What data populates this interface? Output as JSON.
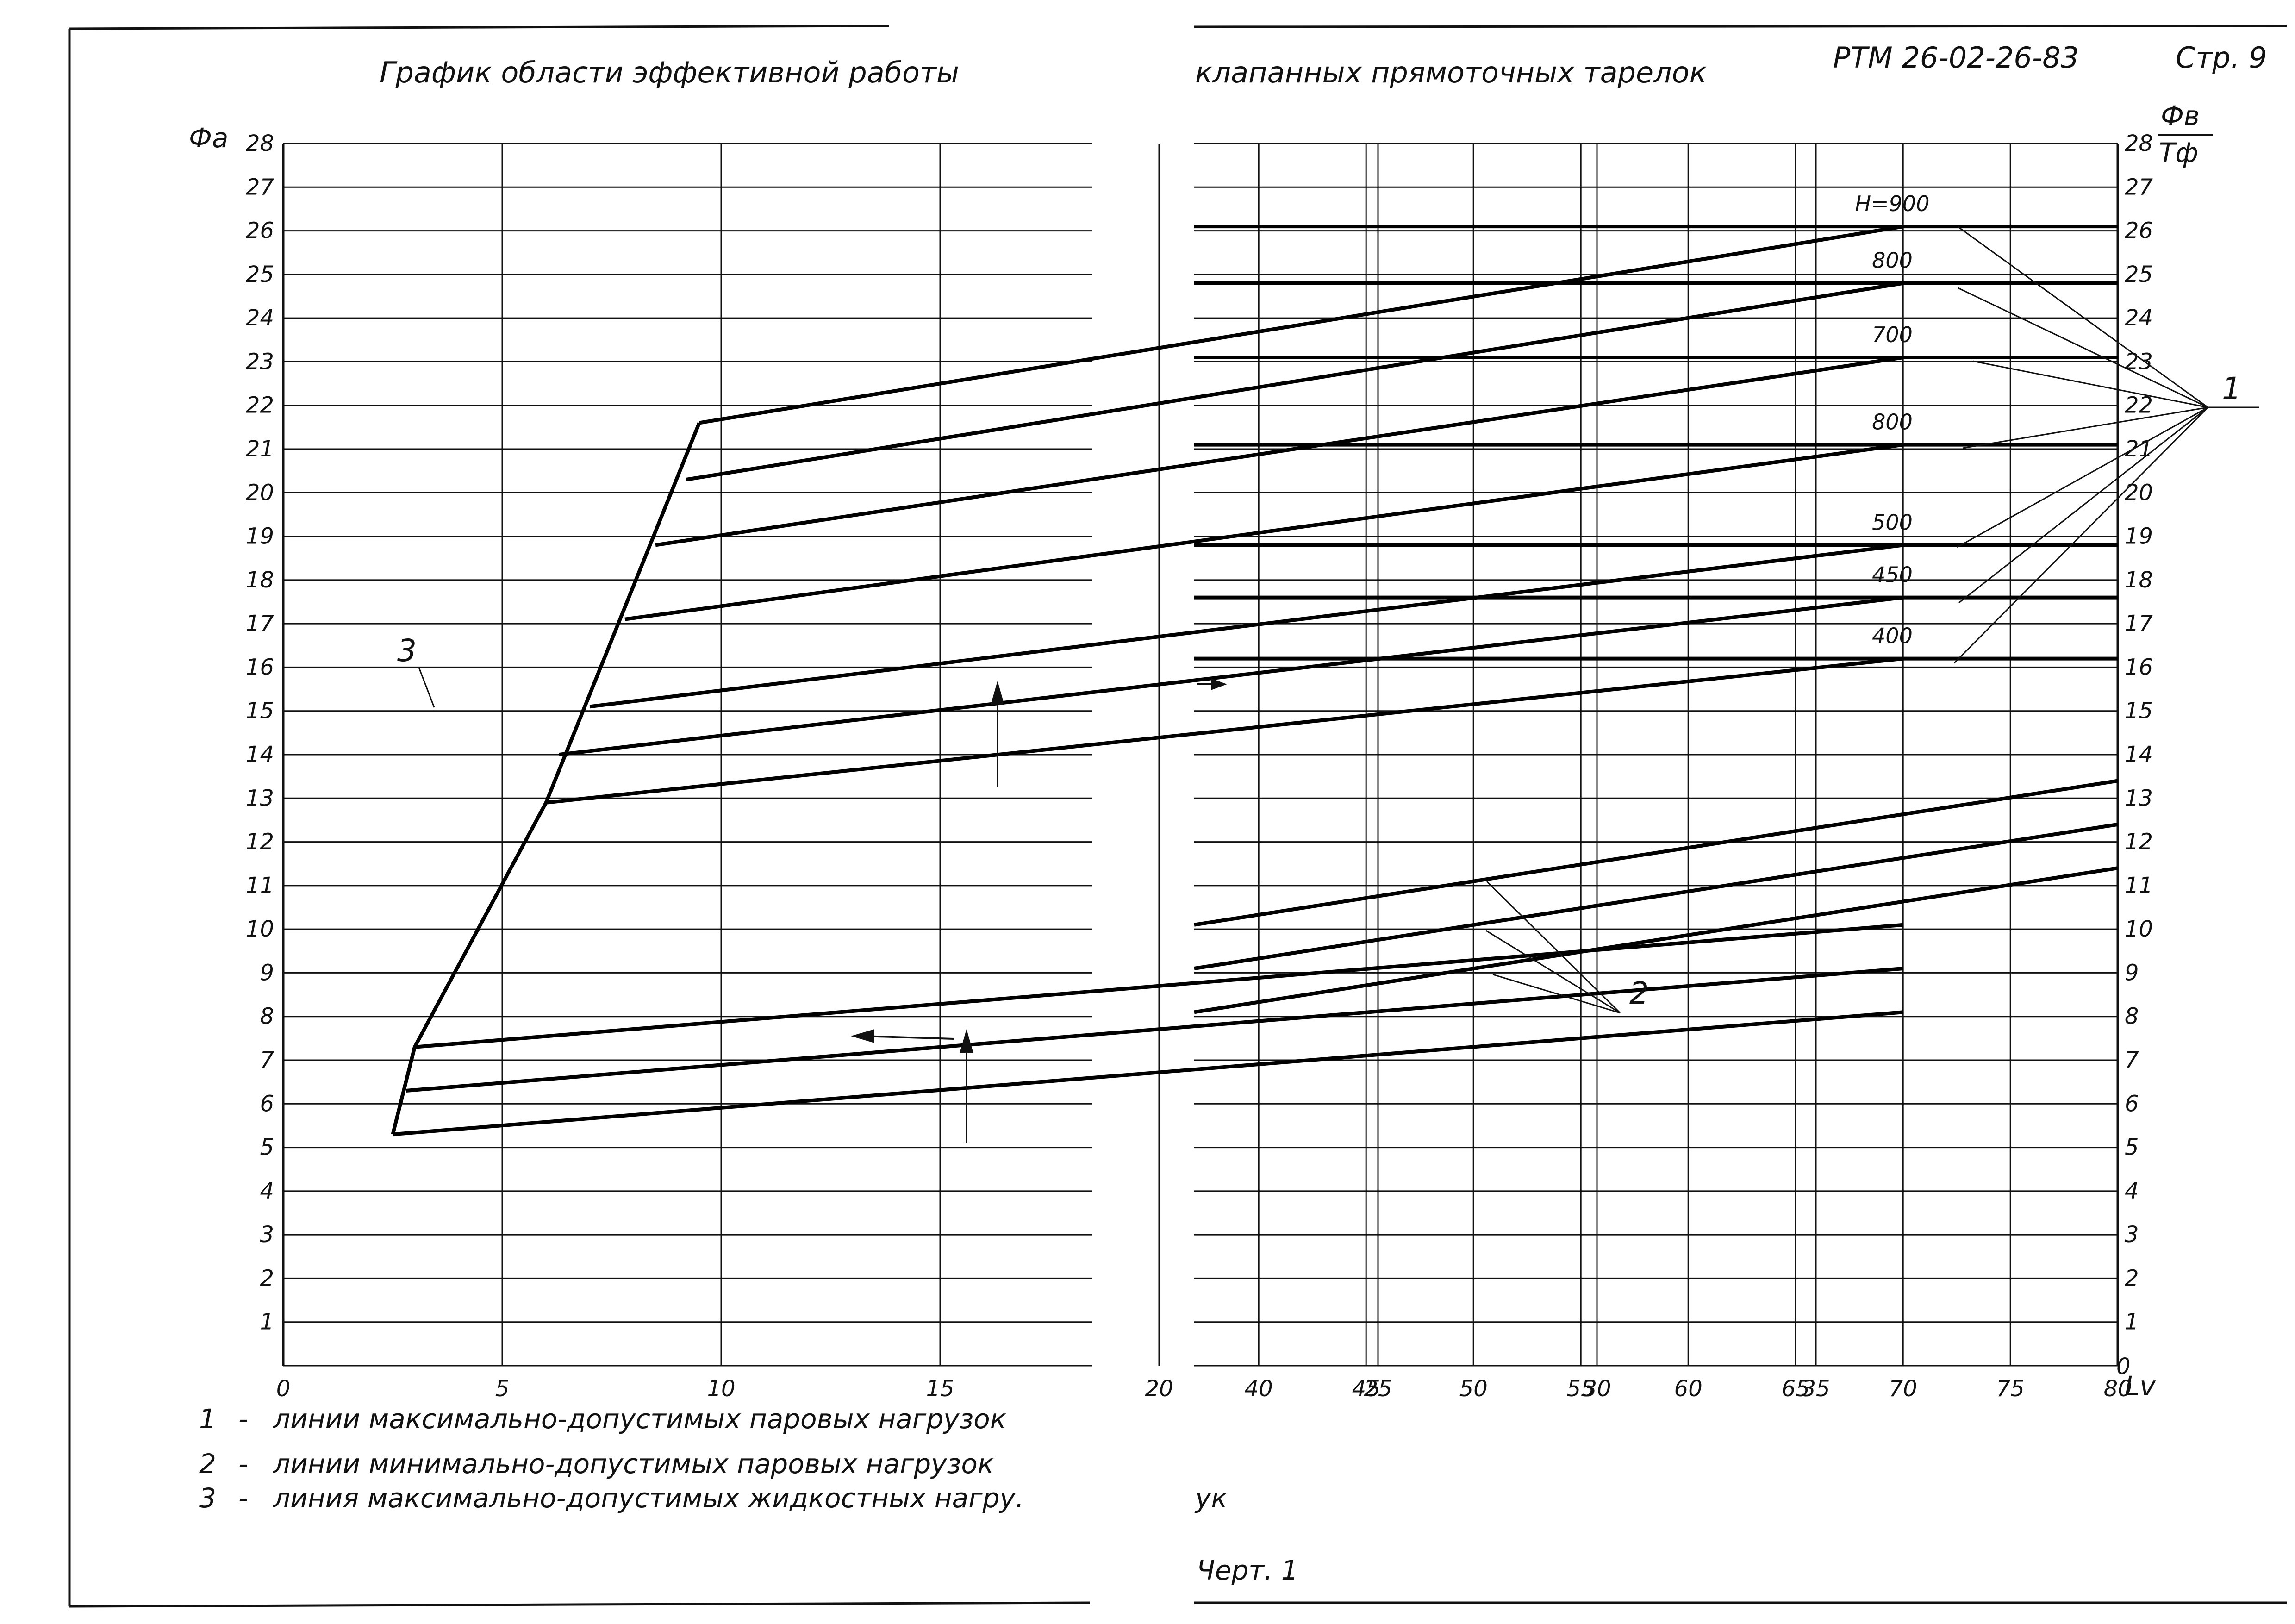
{
  "header": {
    "title_left": "График области эффективной работы",
    "title_right": "клапанных прямоточных тарелок",
    "doc_code": "РТМ 26-02-26-83",
    "page": "Стр. 9"
  },
  "axes": {
    "left_y_label": "Фа",
    "right_y_label_top": "Фв",
    "right_y_label_bottom": "Тф",
    "x_label": "Lv",
    "zero_label": "0"
  },
  "legend": [
    {
      "num": "1",
      "dash": "-",
      "text": "линии максимально-допустимых паровых нагрузок"
    },
    {
      "num": "2",
      "dash": "-",
      "text": "линии минимально-допустимых паровых нагрузок"
    },
    {
      "num": "3",
      "dash": "-",
      "text": "линия максимально-допустимых жидкостных нагру."
    }
  ],
  "fragment": "ук",
  "drawing_label": "Черт. 1",
  "callouts": {
    "c1": "1",
    "c2": "2",
    "c3": "3"
  },
  "chart_data": [
    {
      "type": "line",
      "panel": "left",
      "ylabel": "Фа",
      "xlabel": "",
      "xlim": [
        0,
        37
      ],
      "ylim": [
        0,
        28
      ],
      "x_ticks": [
        0,
        5,
        10,
        15,
        20,
        25,
        30,
        35
      ],
      "x_tick_labels": [
        "0",
        "5",
        "10",
        "15",
        "20",
        "25",
        "30",
        "35"
      ],
      "y_ticks": [
        1,
        2,
        3,
        4,
        5,
        6,
        7,
        8,
        9,
        10,
        11,
        12,
        13,
        14,
        15,
        16,
        17,
        18,
        19,
        20,
        21,
        22,
        23,
        24,
        25,
        26,
        27,
        28
      ],
      "y_tick_labels": [
        "1",
        "2",
        "3",
        "4",
        "5",
        "6",
        "7",
        "8",
        "9",
        "10",
        "11",
        "12",
        "13",
        "14",
        "15",
        "16",
        "17",
        "18",
        "19",
        "20",
        "21",
        "22",
        "23",
        "24",
        "25",
        "26",
        "27",
        "28"
      ],
      "grid": true,
      "series": [
        {
          "group": "1",
          "x": [
            9.5,
            37
          ],
          "y": [
            21.6,
            26.1
          ]
        },
        {
          "group": "1",
          "x": [
            9.2,
            37
          ],
          "y": [
            20.3,
            24.8
          ]
        },
        {
          "group": "1",
          "x": [
            8.5,
            37
          ],
          "y": [
            18.8,
            23.1
          ]
        },
        {
          "group": "1",
          "x": [
            7.8,
            37
          ],
          "y": [
            17.1,
            21.1
          ]
        },
        {
          "group": "1",
          "x": [
            7.0,
            37
          ],
          "y": [
            15.1,
            18.8
          ]
        },
        {
          "group": "1",
          "x": [
            6.3,
            37
          ],
          "y": [
            14.0,
            17.6
          ]
        },
        {
          "group": "1",
          "x": [
            6.0,
            37
          ],
          "y": [
            12.9,
            16.2
          ]
        },
        {
          "group": "2",
          "x": [
            3.0,
            37
          ],
          "y": [
            7.3,
            10.1
          ]
        },
        {
          "group": "2",
          "x": [
            2.8,
            37
          ],
          "y": [
            6.3,
            9.1
          ]
        },
        {
          "group": "2",
          "x": [
            2.5,
            37
          ],
          "y": [
            5.3,
            8.1
          ]
        },
        {
          "group": "3",
          "x": [
            2.5,
            3.0,
            6.0,
            9.5
          ],
          "y": [
            5.3,
            7.3,
            12.9,
            21.6
          ]
        }
      ]
    },
    {
      "type": "line",
      "panel": "right",
      "ylabel": "Фв / Тф",
      "xlabel": "Lv",
      "xlim": [
        37,
        80
      ],
      "ylim": [
        0,
        28
      ],
      "x_ticks": [
        40,
        45,
        50,
        55,
        60,
        65,
        70,
        75,
        80
      ],
      "x_tick_labels": [
        "40",
        "45",
        "50",
        "55",
        "60",
        "65",
        "70",
        "75",
        "80"
      ],
      "y_ticks": [
        1,
        2,
        3,
        4,
        5,
        6,
        7,
        8,
        9,
        10,
        11,
        12,
        13,
        14,
        15,
        16,
        17,
        18,
        19,
        20,
        21,
        22,
        23,
        24,
        25,
        26,
        27,
        28
      ],
      "y_tick_labels": [
        "1",
        "2",
        "3",
        "4",
        "5",
        "6",
        "7",
        "8",
        "9",
        "10",
        "11",
        "12",
        "13",
        "14",
        "15",
        "16",
        "17",
        "18",
        "19",
        "20",
        "21",
        "22",
        "23",
        "24",
        "25",
        "26",
        "27",
        "28"
      ],
      "grid": true,
      "series": [
        {
          "name": "H=900",
          "label_y": 26.6,
          "x": [
            37,
            80
          ],
          "y": [
            26.1,
            26.1
          ]
        },
        {
          "name": "800",
          "label_y": 25.3,
          "x": [
            37,
            80
          ],
          "y": [
            24.8,
            24.8
          ]
        },
        {
          "name": "700",
          "label_y": 23.6,
          "x": [
            37,
            80
          ],
          "y": [
            23.1,
            23.1
          ]
        },
        {
          "name": "800",
          "label_y": 21.6,
          "x": [
            37,
            80
          ],
          "y": [
            21.1,
            21.1
          ]
        },
        {
          "name": "500",
          "label_y": 19.3,
          "x": [
            37,
            80
          ],
          "y": [
            18.8,
            18.8
          ]
        },
        {
          "name": "450",
          "label_y": 18.1,
          "x": [
            37,
            80
          ],
          "y": [
            17.6,
            17.6
          ]
        },
        {
          "name": "400",
          "label_y": 16.7,
          "x": [
            37,
            80
          ],
          "y": [
            16.2,
            16.2
          ]
        },
        {
          "group": "2",
          "x": [
            37,
            80
          ],
          "y": [
            10.1,
            13.4
          ]
        },
        {
          "group": "2",
          "x": [
            37,
            80
          ],
          "y": [
            9.1,
            12.4
          ]
        },
        {
          "group": "2",
          "x": [
            37,
            80
          ],
          "y": [
            8.1,
            11.4
          ]
        }
      ]
    }
  ]
}
